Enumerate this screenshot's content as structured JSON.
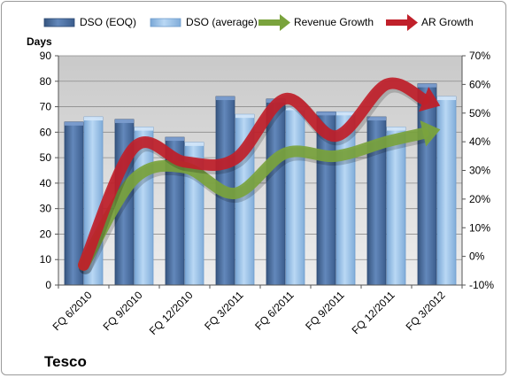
{
  "chart_data": {
    "type": "bar",
    "company_label": "Tesco",
    "categories": [
      "FQ 6/2010",
      "FQ 9/2010",
      "FQ 12/2010",
      "FQ 3/2011",
      "FQ 6/2011",
      "FQ 9/2011",
      "FQ 12/2011",
      "FQ 3/2012"
    ],
    "y_left": {
      "title": "Days",
      "min": 0,
      "max": 90,
      "ticks": [
        0,
        10,
        20,
        30,
        40,
        50,
        60,
        70,
        80,
        90
      ]
    },
    "y_right": {
      "min": -10,
      "max": 70,
      "ticks": [
        "-10%",
        "0%",
        "10%",
        "20%",
        "30%",
        "40%",
        "50%",
        "60%",
        "70%"
      ]
    },
    "series": [
      {
        "name": "DSO (EOQ)",
        "kind": "bar",
        "axis": "left",
        "color": "#4a6fa5",
        "values": [
          64,
          65,
          58,
          74,
          73,
          68,
          66,
          79
        ]
      },
      {
        "name": "DSO (average)",
        "kind": "bar",
        "axis": "left",
        "color": "#9ec3e8",
        "values": [
          66,
          62,
          56,
          67,
          70,
          68,
          62,
          74
        ]
      },
      {
        "name": "Revenue Growth",
        "kind": "line-arrow",
        "axis": "right",
        "unit": "%",
        "color": "#7aa33d",
        "values": [
          -3,
          27,
          31,
          22,
          36,
          35,
          40,
          44
        ]
      },
      {
        "name": "AR Growth",
        "kind": "line-arrow",
        "axis": "right",
        "unit": "%",
        "color": "#c0202a",
        "values": [
          -3,
          38,
          33,
          34,
          55,
          42,
          60,
          53
        ]
      }
    ],
    "legend": "top",
    "grid": true
  }
}
